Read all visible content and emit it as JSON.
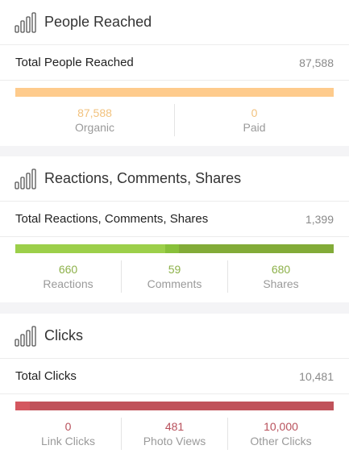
{
  "colors": {
    "reached_bar": "#fecb8c",
    "reached_num": "#f2c27e",
    "green_light": "#9ccf4a",
    "green_mid": "#88c03a",
    "green_dark": "#82ab38",
    "green_num": "#8db14a",
    "red_light": "#d4575f",
    "red_dark": "#c0525a",
    "red_num": "#b8505b"
  },
  "sections": [
    {
      "title": "People Reached",
      "icon": "bar-chart-icon",
      "total_label": "Total People Reached",
      "total_value": "87,588",
      "stats": [
        {
          "value": "87,588",
          "label": "Organic"
        },
        {
          "value": "0",
          "label": "Paid"
        }
      ],
      "bar_fractions": [
        1.0,
        0.0
      ]
    },
    {
      "title": "Reactions, Comments, Shares",
      "icon": "bar-chart-icon",
      "total_label": "Total Reactions, Comments, Shares",
      "total_value": "1,399",
      "stats": [
        {
          "value": "660",
          "label": "Reactions"
        },
        {
          "value": "59",
          "label": "Comments"
        },
        {
          "value": "680",
          "label": "Shares"
        }
      ],
      "bar_fractions": [
        0.472,
        0.042,
        0.486
      ]
    },
    {
      "title": "Clicks",
      "icon": "bar-chart-icon",
      "total_label": "Total Clicks",
      "total_value": "10,481",
      "stats": [
        {
          "value": "0",
          "label": "Link Clicks"
        },
        {
          "value": "481",
          "label": "Photo Views"
        },
        {
          "value": "10,000",
          "label": "Other Clicks"
        }
      ],
      "bar_fractions": [
        0.0,
        0.046,
        0.954
      ]
    }
  ]
}
